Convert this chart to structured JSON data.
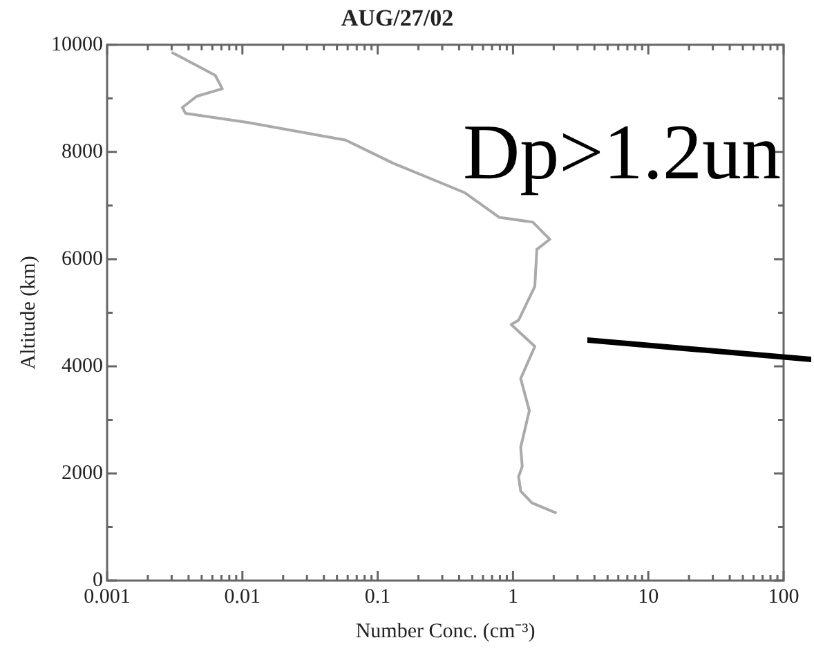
{
  "chart_data": {
    "type": "line",
    "title": "AUG/27/02",
    "xlabel": "Number Conc. (cm⁻³)",
    "ylabel": "Altitude (km)",
    "annotations": [
      "Dp>1.2un"
    ],
    "log": "x",
    "grid": false,
    "legend": false,
    "marker": "none",
    "line_style": "solid",
    "xlim": [
      0.001,
      100
    ],
    "xticks": [
      0.001,
      {
        "value": 0.002,
        "label": null
      },
      {
        "value": 0.003,
        "label": null
      },
      {
        "value": 0.004,
        "label": null
      },
      {
        "value": 0.005,
        "label": null
      },
      {
        "value": 0.006,
        "label": null
      },
      {
        "value": 0.007,
        "label": null
      },
      {
        "value": 0.008,
        "label": null
      },
      {
        "value": 0.009,
        "label": null
      },
      0.01,
      {
        "value": 0.02,
        "label": null
      },
      {
        "value": 0.03,
        "label": null
      },
      {
        "value": 0.04,
        "label": null
      },
      {
        "value": 0.05,
        "label": null
      },
      {
        "value": 0.06,
        "label": null
      },
      {
        "value": 0.07,
        "label": null
      },
      {
        "value": 0.08,
        "label": null
      },
      {
        "value": 0.09,
        "label": null
      },
      0.1,
      {
        "value": 0.2,
        "label": null
      },
      {
        "value": 0.3,
        "label": null
      },
      {
        "value": 0.4,
        "label": null
      },
      {
        "value": 0.5,
        "label": null
      },
      {
        "value": 0.6,
        "label": null
      },
      {
        "value": 0.7,
        "label": null
      },
      {
        "value": 0.8,
        "label": null
      },
      {
        "value": 0.9,
        "label": null
      },
      1,
      {
        "value": 2,
        "label": null
      },
      {
        "value": 3,
        "label": null
      },
      {
        "value": 4,
        "label": null
      },
      {
        "value": 5,
        "label": null
      },
      {
        "value": 6,
        "label": null
      },
      {
        "value": 7,
        "label": null
      },
      {
        "value": 8,
        "label": null
      },
      {
        "value": 9,
        "label": null
      },
      10,
      {
        "value": 20,
        "label": null
      },
      {
        "value": 30,
        "label": null
      },
      {
        "value": 40,
        "label": null
      },
      {
        "value": 50,
        "label": null
      },
      {
        "value": 60,
        "label": null
      },
      {
        "value": 70,
        "label": null
      },
      {
        "value": 80,
        "label": null
      },
      {
        "value": 90,
        "label": null
      },
      100
    ],
    "ylim": [
      0,
      10000
    ],
    "yticks": [
      0,
      {
        "value": 1000,
        "label": null
      },
      2000,
      {
        "value": 3000,
        "label": null
      },
      4000,
      {
        "value": 5000,
        "label": null
      },
      6000,
      {
        "value": 7000,
        "label": null
      },
      8000,
      {
        "value": 9000,
        "label": null
      },
      10000
    ],
    "series": [
      {
        "color": "#aaaaaa",
        "x": [
          0.003,
          0.0063,
          0.0071,
          0.0046,
          0.0036,
          0.0038,
          0.011,
          0.058,
          0.13,
          0.44,
          0.79,
          1.4,
          1.87,
          1.5,
          1.45,
          1.1,
          0.97,
          1.45,
          1.14,
          1.32,
          1.14,
          1.17,
          1.1,
          1.14,
          1.38,
          2.1
        ],
        "values": [
          9860,
          9430,
          9180,
          9040,
          8830,
          8720,
          8550,
          8220,
          7790,
          7240,
          6780,
          6690,
          6370,
          6180,
          5490,
          4860,
          4780,
          4370,
          3770,
          3170,
          2490,
          2130,
          1940,
          1670,
          1450,
          1260
        ]
      }
    ]
  }
}
